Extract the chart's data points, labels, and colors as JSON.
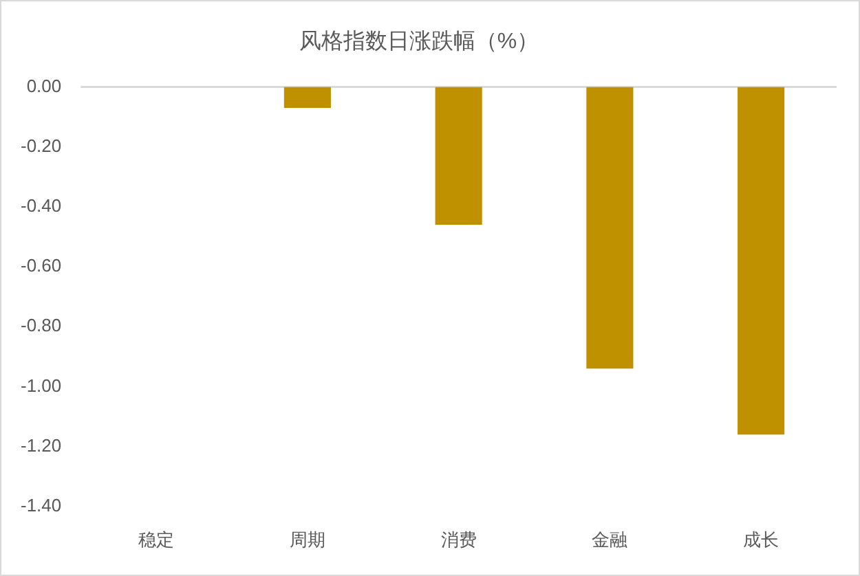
{
  "chart_data": {
    "type": "bar",
    "title": "风格指数日涨跌幅（%）",
    "categories": [
      "稳定",
      "周期",
      "消费",
      "金融",
      "成长"
    ],
    "values": [
      0,
      -0.07,
      -0.46,
      -0.94,
      -1.16
    ],
    "color": "#bf9000",
    "ylim": [
      -1.4,
      0
    ],
    "yticks": [
      {
        "value": 0,
        "label": "0.00"
      },
      {
        "value": -0.2,
        "label": "-0.20"
      },
      {
        "value": -0.4,
        "label": "-0.40"
      },
      {
        "value": -0.6,
        "label": "-0.60"
      },
      {
        "value": -0.8,
        "label": "-0.80"
      },
      {
        "value": -1.0,
        "label": "-1.00"
      },
      {
        "value": -1.2,
        "label": "-1.20"
      },
      {
        "value": -1.4,
        "label": "-1.40"
      }
    ]
  }
}
